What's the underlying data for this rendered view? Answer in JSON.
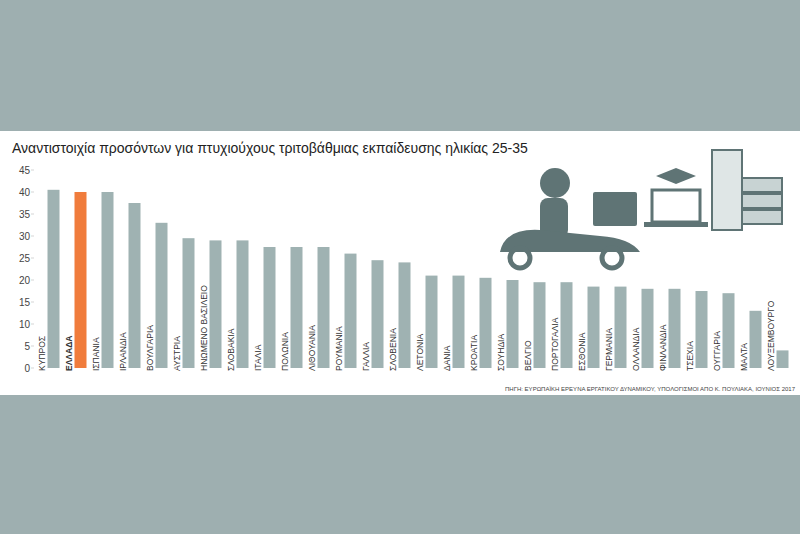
{
  "chart_data": {
    "type": "bar",
    "title": "Αναντιστοιχία προσόντων για πτυχιούχους τριτοβάθμιας εκπαίδευσης ηλικίας 25-35",
    "categories": [
      "ΚΥΠΡΟΣ",
      "ΕΛΛΑΔΑ",
      "ΙΣΠΑΝΙΑ",
      "ΙΡΛΑΝΔΙΑ",
      "ΒΟΥΛΓΑΡΙΑ",
      "ΑΥΣΤΡΙΑ",
      "ΗΝΩΜΕΝΟ ΒΑΣΙΛΕΙΟ",
      "ΣΛΟΒΑΚΙΑ",
      "ΙΤΑΛΙΑ",
      "ΠΟΛΩΝΙΑ",
      "ΛΙΘΟΥΑΝΙΑ",
      "ΡΟΥΜΑΝΙΑ",
      "ΓΑΛΛΙΑ",
      "ΣΛΟΒΕΝΙΑ",
      "ΛΕΤΟΝΙΑ",
      "ΔΑΝΙΑ",
      "ΚΡΟΑΤΙΑ",
      "ΣΟΥΗΔΙΑ",
      "ΒΕΛΓΙΟ",
      "ΠΟΡΤΟΓΑΛΙΑ",
      "ΕΣΘΟΝΙΑ",
      "ΓΕΡΜΑΝΙΑ",
      "ΟΛΛΑΝΔΙΑ",
      "ΦΙΝΛΑΝΔΙΑ",
      "ΤΣΕΧΙΑ",
      "ΟΥΓΓΑΡΙΑ",
      "ΜΑΛΤΑ",
      "ΛΟΥΞΕΜΒΟΥΡΓΟ"
    ],
    "values": [
      40.5,
      40,
      40,
      37.5,
      33,
      29.5,
      29,
      29,
      27.5,
      27.5,
      27.5,
      26,
      24.5,
      24,
      21,
      21,
      20.5,
      20,
      19.5,
      19.5,
      18.5,
      18.5,
      18,
      18,
      17.5,
      17,
      13,
      4
    ],
    "colors": [
      "#9fb2b2",
      "#f07c3c",
      "#9fb2b2",
      "#9fb2b2",
      "#9fb2b2",
      "#9fb2b2",
      "#9fb2b2",
      "#9fb2b2",
      "#9fb2b2",
      "#9fb2b2",
      "#9fb2b2",
      "#9fb2b2",
      "#9fb2b2",
      "#9fb2b2",
      "#9fb2b2",
      "#9fb2b2",
      "#9fb2b2",
      "#9fb2b2",
      "#9fb2b2",
      "#9fb2b2",
      "#9fb2b2",
      "#9fb2b2",
      "#9fb2b2",
      "#9fb2b2",
      "#9fb2b2",
      "#9fb2b2",
      "#9fb2b2",
      "#9fb2b2"
    ],
    "ylim": [
      0,
      45
    ],
    "yticks": [
      0,
      5,
      10,
      15,
      20,
      25,
      30,
      35,
      40,
      45
    ],
    "grid": false,
    "source": "ΠΗΓΗ: ΕΥΡΩΠΑΪΚΗ ΕΡΕΥΝΑ ΕΡΓΑΤΙΚΟΥ ΔΥΝΑΜΙΚΟΥ, ΥΠΟΛΟΓΙΣΜΟΙ ΑΠΟ Κ. ΠΟΥΛΙΑΚΑ, ΙΟΥΝΙΟΣ 2017"
  }
}
